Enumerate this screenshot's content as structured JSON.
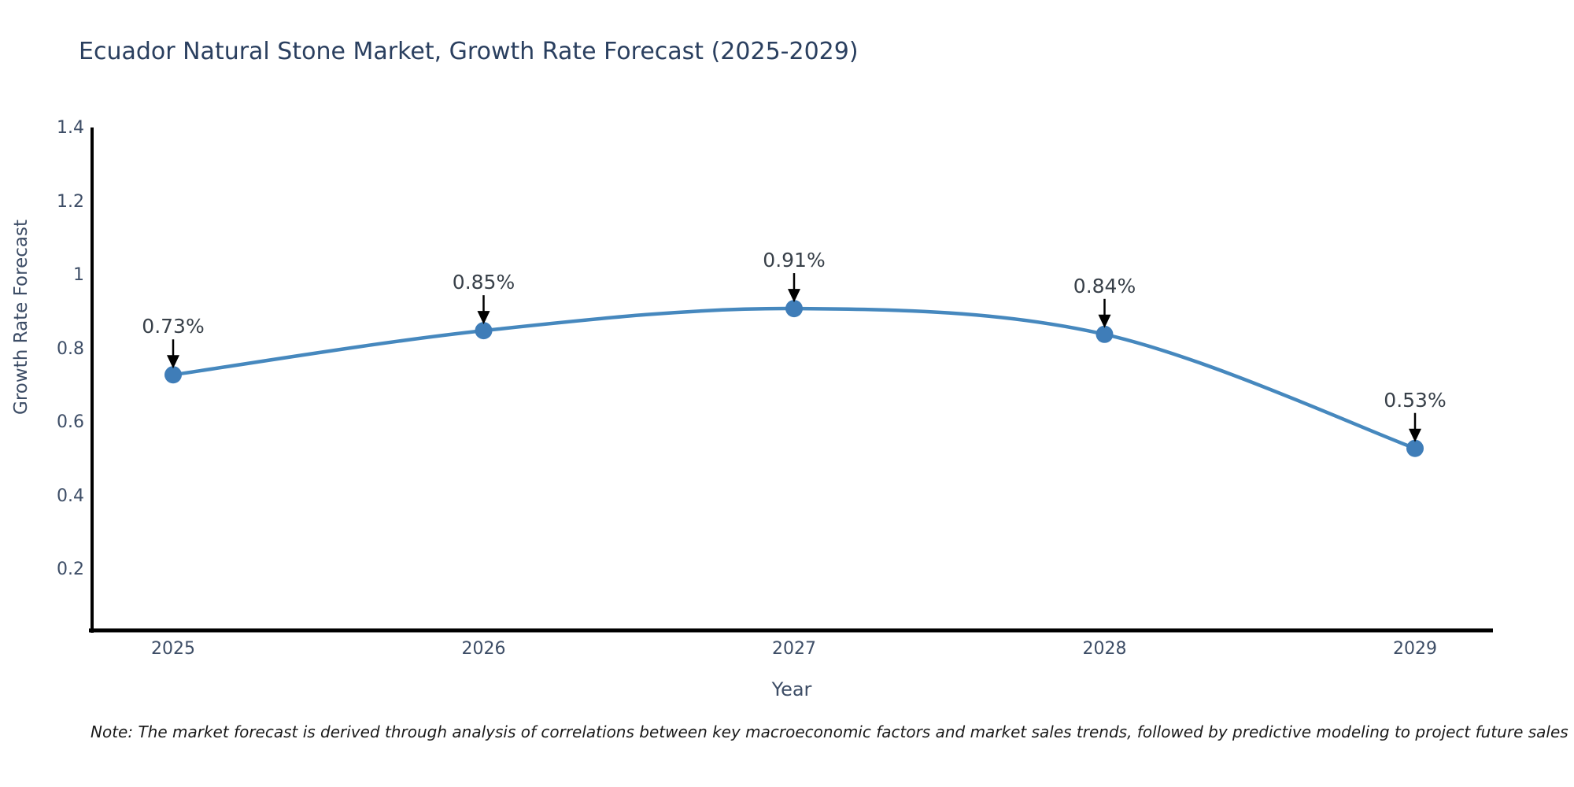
{
  "title": "Ecuador Natural Stone Market, Growth Rate Forecast (2025-2029)",
  "note": "Note: The market forecast is derived through analysis of correlations between key macroeconomic factors and market sales trends, followed by predictive modeling to project future sales",
  "colors": {
    "line": "#4688be",
    "marker": "#3f7db8",
    "axis": "#000000",
    "arrow": "#000000",
    "title_text": "#2a3f5f",
    "tick_text": "#3d4d66",
    "annotation_text": "#384049",
    "background": "#ffffff"
  },
  "chart_data": {
    "type": "line",
    "title": "Ecuador Natural Stone Market, Growth Rate Forecast (2025-2029)",
    "xlabel": "Year",
    "ylabel": "Growth Rate Forecast",
    "x": [
      2025,
      2026,
      2027,
      2028,
      2029
    ],
    "xtick_labels": [
      "2025",
      "2026",
      "2027",
      "2028",
      "2029"
    ],
    "series": [
      {
        "name": "Growth Rate Forecast",
        "values": [
          0.73,
          0.85,
          0.91,
          0.84,
          0.53
        ],
        "point_labels": [
          "0.73%",
          "0.85%",
          "0.91%",
          "0.84%",
          "0.53%"
        ]
      }
    ],
    "yticks": [
      0.2,
      0.4,
      0.6,
      0.8,
      1,
      1.2,
      1.4
    ],
    "ytick_labels": [
      "0.2",
      "0.4",
      "0.6",
      "0.8",
      "1",
      "1.2",
      "1.4"
    ],
    "ylim": [
      0.04,
      1.4
    ],
    "line_shape": "spline",
    "grid": false,
    "legend": false,
    "annotation_style": "value label with downward arrow to each point"
  }
}
